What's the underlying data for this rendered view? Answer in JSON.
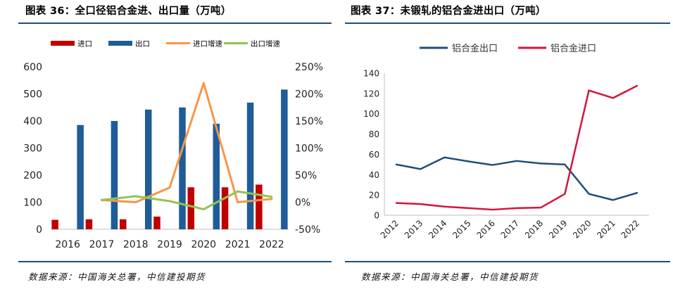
{
  "left": {
    "title": "图表 36：全口径铝合金进、出口量（万吨）",
    "source": "数据来源：中国海关总署，中信建投期货",
    "chart_data": {
      "type": "bar",
      "categories": [
        "2016",
        "2017",
        "2018",
        "2019",
        "2020",
        "2021",
        "2022"
      ],
      "series": [
        {
          "name": "进口",
          "kind": "bar",
          "axis": "left",
          "color": "#c00000",
          "values": [
            35,
            37,
            37,
            47,
            155,
            155,
            165
          ]
        },
        {
          "name": "出口",
          "kind": "bar",
          "axis": "left",
          "color": "#1f5c99",
          "values": [
            385,
            400,
            442,
            450,
            390,
            468,
            516
          ]
        },
        {
          "name": "进口增速",
          "kind": "line",
          "axis": "right",
          "color": "#f79646",
          "values": [
            null,
            4,
            0,
            27,
            220,
            0,
            6
          ]
        },
        {
          "name": "出口增速",
          "kind": "line",
          "axis": "right",
          "color": "#92c353",
          "values": [
            null,
            4,
            11,
            2,
            -13,
            20,
            10
          ]
        }
      ],
      "ylim_left": [
        0,
        600
      ],
      "yticks_left": [
        0,
        100,
        200,
        300,
        400,
        500,
        600
      ],
      "ylim_right": [
        -50,
        250
      ],
      "yticks_right": [
        -50,
        0,
        50,
        100,
        150,
        200,
        250
      ],
      "ytick_labels_right": [
        "-50%",
        "0%",
        "50%",
        "100%",
        "150%",
        "200%",
        "250%"
      ],
      "grid": false,
      "legend": "top"
    }
  },
  "right": {
    "title": "图表 37：未锻轧的铝合金进出口（万吨）",
    "source": "数据来源：中国海关总署，中信建投期货",
    "chart_data": {
      "type": "line",
      "x": [
        "2012",
        "2013",
        "2014",
        "2015",
        "2016",
        "2017",
        "2018",
        "2019",
        "2020",
        "2021",
        "2022"
      ],
      "series": [
        {
          "name": "铝合金出口",
          "color": "#1f4e79",
          "values": [
            50,
            45.5,
            57,
            53,
            49.5,
            53.5,
            51,
            50,
            21,
            15,
            22
          ]
        },
        {
          "name": "铝合金进口",
          "color": "#d4143a",
          "values": [
            12,
            11,
            8.5,
            7,
            5.5,
            7,
            7.5,
            21,
            123,
            115.5,
            127.5
          ]
        }
      ],
      "ylim": [
        0,
        140
      ],
      "yticks": [
        0,
        20,
        40,
        60,
        80,
        100,
        120,
        140
      ],
      "grid": false,
      "legend": "top"
    }
  }
}
